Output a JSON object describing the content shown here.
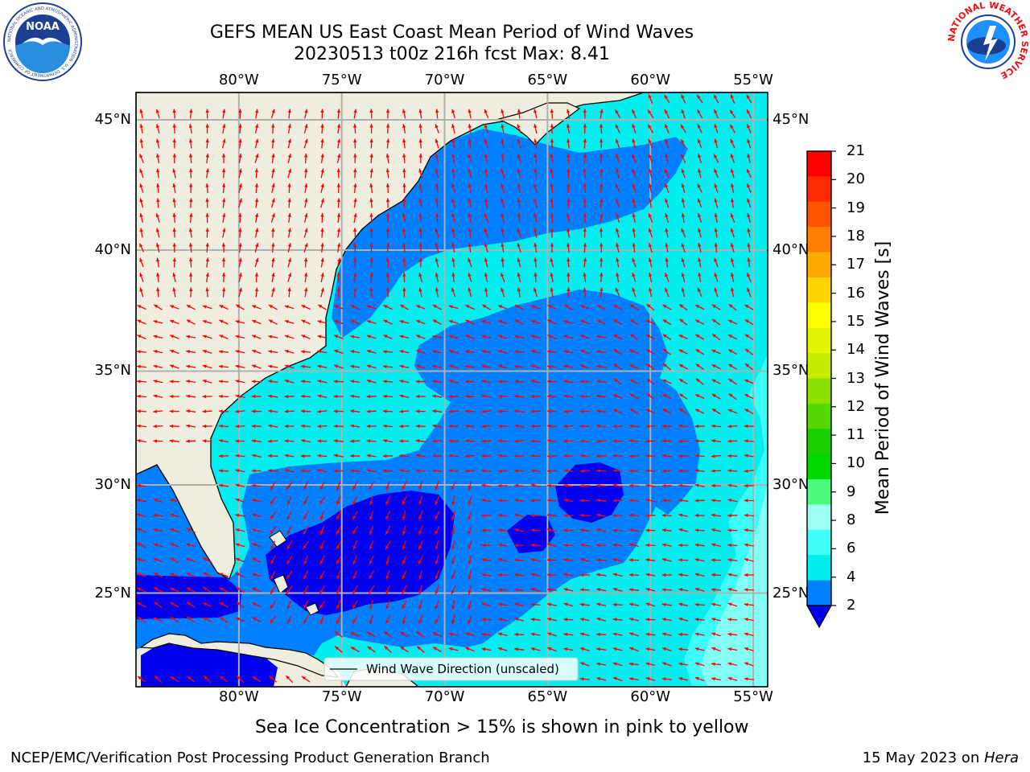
{
  "title": {
    "line1": "GEFS MEAN US East Coast Mean Period of Wind Waves",
    "line2": "20230513 t00z 216h fcst   Max: 8.41"
  },
  "map": {
    "lon_labels": [
      "80°W",
      "75°W",
      "70°W",
      "65°W",
      "60°W",
      "55°W"
    ],
    "lat_labels": [
      "45°N",
      "40°N",
      "35°N",
      "30°N",
      "25°N"
    ],
    "extent": {
      "lon_min": -85,
      "lon_max": -54.3,
      "lat_min": 20.5,
      "lat_max": 46
    },
    "legend_label": "Wind Wave Direction (unscaled)",
    "arrow_color": "#ff0000",
    "land_color": "#efeddd"
  },
  "colorbar": {
    "label": "Mean Period of Wind Waves [s]",
    "ticks": [
      "21",
      "20",
      "19",
      "18",
      "17",
      "16",
      "15",
      "14",
      "13",
      "12",
      "11",
      "10",
      "9",
      "8",
      "6",
      "4",
      "2"
    ],
    "colors": [
      "#ff0000",
      "#ff2a00",
      "#ff5500",
      "#ff8000",
      "#ffaa00",
      "#ffd400",
      "#ffff00",
      "#e3f500",
      "#c6ea00",
      "#8ee000",
      "#55d700",
      "#1ccf00",
      "#00d800",
      "#4cfa7e",
      "#9dfff1",
      "#40fff7",
      "#00eeee",
      "#0080ff"
    ],
    "extend_color": "#0000ee"
  },
  "subtitle": "Sea Ice Concentration > 15% is shown in pink to yellow",
  "footer": {
    "left": "NCEP/EMC/Verification Post Processing Product Generation Branch",
    "right_date": "15 May 2023 on ",
    "right_host": "Hera"
  },
  "logos": {
    "noaa_text": "NOAA",
    "noaa_ring": "NATIONAL OCEANIC AND ATMOSPHERIC ADMINISTRATION · U.S. DEPARTMENT OF COMMERCE",
    "nws_ring": "NATIONAL WEATHER SERVICE"
  }
}
